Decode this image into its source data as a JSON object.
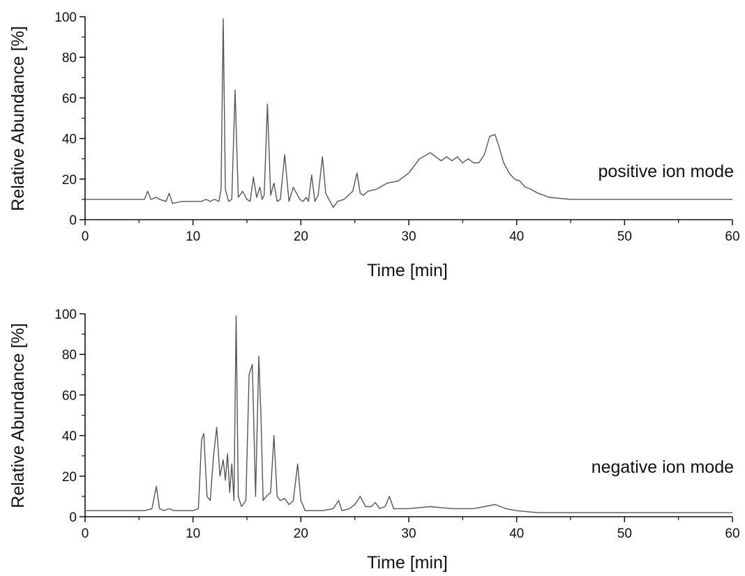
{
  "chart_data": [
    {
      "type": "line",
      "xlabel": "Time [min]",
      "ylabel": "Relative Abundance [%]",
      "xlim": [
        0,
        60
      ],
      "ylim": [
        0,
        100
      ],
      "xticks": [
        "0",
        "10",
        "20",
        "30",
        "40",
        "50",
        "60"
      ],
      "yticks": [
        "0",
        "20",
        "40",
        "60",
        "80",
        "100"
      ],
      "annotation": "positive ion mode",
      "grid": false,
      "line_color": "#555555",
      "series": [
        {
          "x": [
            0,
            5.5,
            5.8,
            6.1,
            6.6,
            6.9,
            7.5,
            7.8,
            8.1,
            9,
            10,
            10.8,
            11.2,
            11.6,
            12,
            12.4,
            12.6,
            12.8,
            13.0,
            13.3,
            13.6,
            13.9,
            14.2,
            14.6,
            15.0,
            15.3,
            15.6,
            15.9,
            16.2,
            16.4,
            16.6,
            16.9,
            17.2,
            17.5,
            17.8,
            18.1,
            18.5,
            18.9,
            19.3,
            19.6,
            19.9,
            20.2,
            20.5,
            20.7,
            21.0,
            21.3,
            21.6,
            22.0,
            22.3,
            22.7,
            23.0,
            23.4,
            24,
            24.8,
            25.2,
            25.5,
            25.8,
            26.2,
            27,
            28,
            29,
            30,
            31,
            32,
            32.5,
            33,
            33.5,
            34,
            34.5,
            35,
            35.5,
            36,
            36.5,
            37,
            37.5,
            38,
            38.3,
            38.8,
            39.3,
            39.8,
            40.3,
            40.8,
            41.3,
            42,
            43,
            45,
            50,
            55,
            60
          ],
          "y": [
            10,
            10,
            14,
            10,
            11,
            10,
            9,
            13,
            8,
            9,
            9,
            9,
            10,
            9,
            10,
            9,
            15,
            99,
            15,
            9,
            10,
            64,
            11,
            14,
            10,
            9,
            21,
            11,
            16,
            10,
            12,
            57,
            12,
            18,
            9,
            10,
            32,
            9,
            16,
            13,
            10,
            9,
            11,
            9,
            22,
            9,
            12,
            31,
            13,
            9,
            6,
            9,
            10,
            14,
            23,
            13,
            12,
            14,
            15,
            18,
            19,
            23,
            30,
            33,
            31,
            29,
            31,
            29,
            31,
            28,
            30,
            28,
            28,
            32,
            41,
            42,
            37,
            28,
            23,
            20,
            19,
            16,
            15,
            13,
            11,
            10,
            10,
            10,
            10
          ]
        }
      ]
    },
    {
      "type": "line",
      "xlabel": "Time [min]",
      "ylabel": "Relative Abundance [%]",
      "xlim": [
        0,
        60
      ],
      "ylim": [
        0,
        100
      ],
      "xticks": [
        "0",
        "10",
        "20",
        "30",
        "40",
        "50",
        "60"
      ],
      "yticks": [
        "0",
        "20",
        "40",
        "60",
        "80",
        "100"
      ],
      "annotation": "negative ion mode",
      "grid": false,
      "line_color": "#555555",
      "series": [
        {
          "x": [
            0,
            5.5,
            6.2,
            6.6,
            6.9,
            7.3,
            7.8,
            8.2,
            9,
            10,
            10.5,
            10.8,
            11.0,
            11.3,
            11.6,
            11.9,
            12.2,
            12.5,
            12.8,
            13.0,
            13.2,
            13.4,
            13.6,
            13.8,
            14.0,
            14.2,
            14.5,
            14.9,
            15.2,
            15.5,
            15.8,
            16.1,
            16.3,
            16.5,
            16.8,
            17.2,
            17.5,
            17.8,
            18.1,
            18.5,
            18.9,
            19.3,
            19.7,
            20.0,
            20.4,
            21,
            22,
            23,
            23.5,
            23.8,
            24.5,
            25,
            25.5,
            26,
            26.5,
            26.9,
            27.3,
            27.8,
            28.2,
            28.6,
            29.2,
            30,
            32,
            34,
            36,
            38,
            39,
            40,
            42,
            45,
            50,
            55,
            60
          ],
          "y": [
            3,
            3,
            4,
            15,
            4,
            3,
            4,
            3,
            3,
            3,
            4,
            38,
            41,
            10,
            8,
            30,
            44,
            20,
            28,
            18,
            31,
            12,
            26,
            8,
            99,
            10,
            5,
            8,
            70,
            75,
            10,
            79,
            50,
            8,
            10,
            12,
            40,
            10,
            8,
            9,
            6,
            8,
            26,
            8,
            3,
            3,
            3,
            4,
            8,
            3,
            4,
            6,
            10,
            5,
            5,
            7,
            4,
            5,
            10,
            4,
            4,
            4,
            5,
            4,
            4,
            6,
            4,
            3,
            2,
            2,
            2,
            2,
            2
          ]
        }
      ]
    }
  ]
}
